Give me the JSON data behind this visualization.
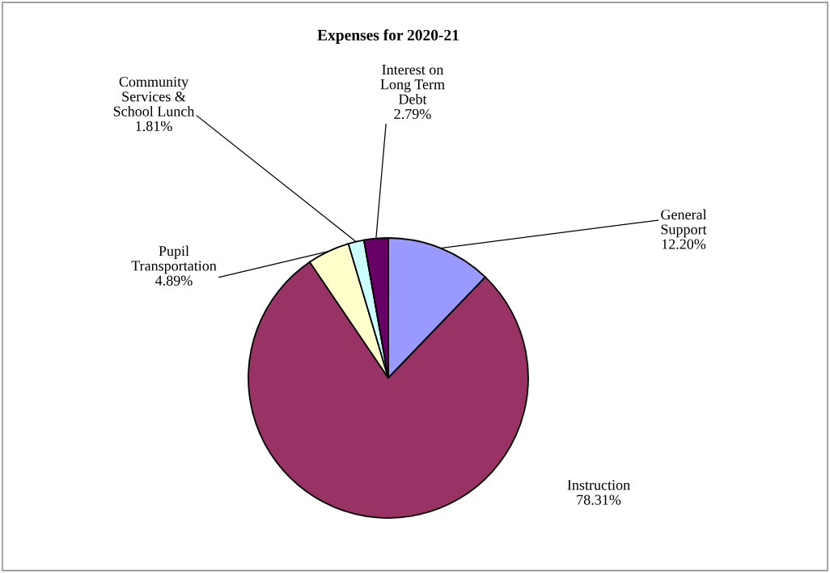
{
  "chart_data": {
    "type": "pie",
    "title": "Expenses for 2020-21",
    "categories": [
      "General\nSupport",
      "Instruction",
      "Pupil\nTransportation",
      "Community\nServices &\nSchool Lunch",
      "Interest on\nLong Term\nDebt"
    ],
    "values": [
      12.2,
      78.31,
      4.89,
      1.81,
      2.79
    ],
    "value_labels": [
      "12.20%",
      "78.31%",
      "4.89%",
      "1.81%",
      "2.79%"
    ],
    "colors": [
      "#9999ff",
      "#993366",
      "#ffffcc",
      "#ccffff",
      "#660066"
    ],
    "legend": false
  }
}
